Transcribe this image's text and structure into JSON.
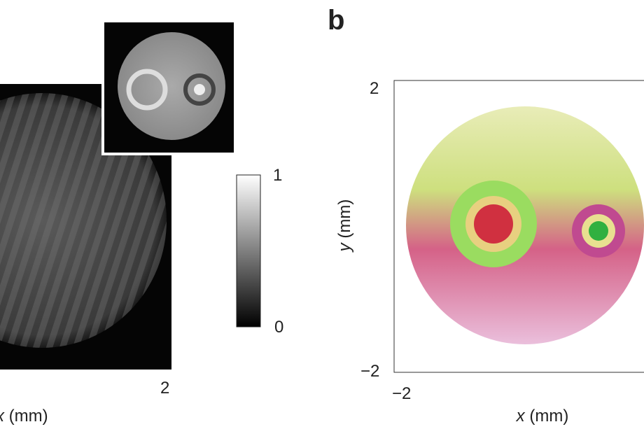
{
  "panel_a": {
    "x_tick": "2",
    "x_var": "x",
    "x_unit": "(mm)",
    "colorbar_ticks": [
      "1",
      "0"
    ]
  },
  "panel_b": {
    "label": "b",
    "y_ticks": [
      "2",
      "−2"
    ],
    "x_tick": "−2",
    "y_var": "y",
    "y_unit": "(mm)",
    "x_var": "x",
    "x_unit": "(mm)"
  }
}
